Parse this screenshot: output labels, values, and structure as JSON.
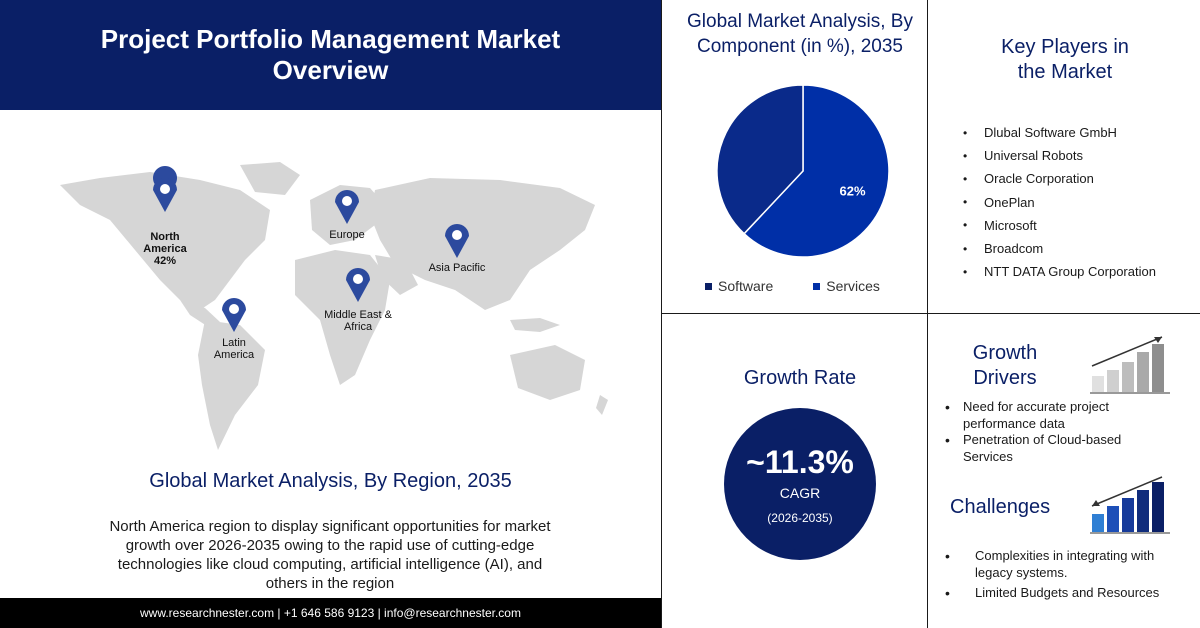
{
  "header": {
    "title": "Project Portfolio Management Market Overview"
  },
  "map": {
    "regions": [
      {
        "name": "North America",
        "value": "42%"
      },
      {
        "name": "Europe"
      },
      {
        "name": "Asia Pacific"
      },
      {
        "name": "Middle East & Africa"
      },
      {
        "name": "Latin America"
      }
    ],
    "pin_color": "#2c4a9e"
  },
  "region_analysis": {
    "title": "Global Market Analysis, By Region, 2035",
    "description": "North America region to display significant opportunities for market growth over 2026-2035 owing to the rapid use of cutting-edge technologies like cloud computing, artificial intelligence (AI), and others in the region"
  },
  "footer": {
    "text": "www.researchnester.com | +1 646 586 9123 | info@researchnester.com"
  },
  "component_analysis": {
    "title": "Global Market Analysis, By Component (in %), 2035"
  },
  "chart_data": {
    "type": "pie",
    "categories": [
      "Software",
      "Services"
    ],
    "values": [
      62,
      38
    ],
    "data_labels": [
      "62%",
      ""
    ],
    "colors": [
      "#002fa7",
      "#0a2a8a"
    ],
    "legend": "bottom"
  },
  "key_players": {
    "title": "Key Players in the Market",
    "items": [
      "Dlubal Software GmbH",
      "Universal Robots",
      "Oracle Corporation",
      "OnePlan",
      "Microsoft",
      "Broadcom",
      "NTT DATA Group Corporation"
    ]
  },
  "growth_rate": {
    "title": "Growth Rate",
    "value": "~11.3%",
    "label": "CAGR",
    "period": "(2026-2035)"
  },
  "growth_drivers": {
    "title": "Growth Drivers",
    "items": [
      "Need for accurate project performance data",
      "Penetration of Cloud-based Services"
    ]
  },
  "challenges": {
    "title": "Challenges",
    "items": [
      "Complexities in integrating with legacy systems.",
      "Limited Budgets and Resources"
    ]
  },
  "colors": {
    "navy": "#0a1f66",
    "accent": "#002fa7",
    "map_land": "#d6d6d6"
  }
}
